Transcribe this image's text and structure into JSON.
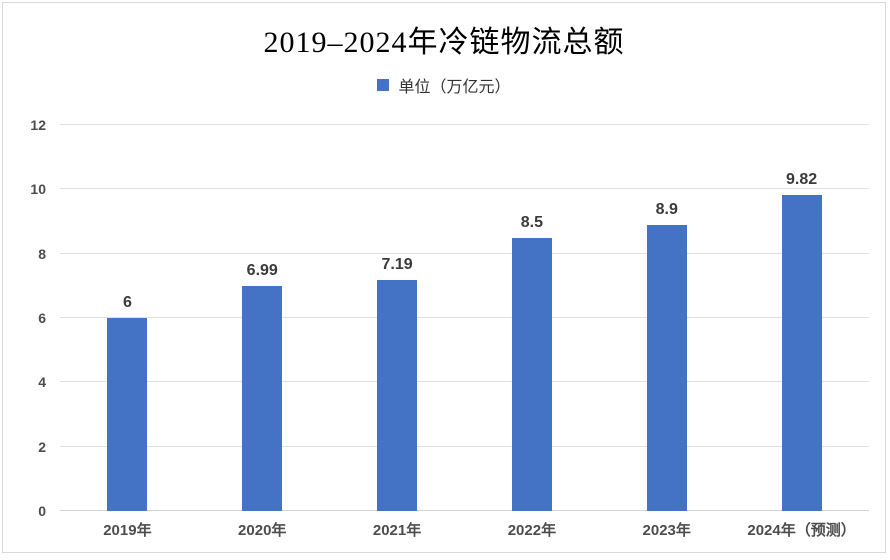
{
  "title": "2019–2024年冷链物流总额",
  "legend": {
    "label": "单位（万亿元）",
    "marker_color": "#4472c4"
  },
  "colors": {
    "bar": "#4472c4",
    "gridline": "#e1e1e1",
    "axis_text": "#4d4d4d",
    "value_label_text": "#3b3b3b",
    "frame_border": "#d9d9d9"
  },
  "chart_data": {
    "type": "bar",
    "title": "2019–2024年冷链物流总额",
    "categories": [
      "2019年",
      "2020年",
      "2021年",
      "2022年",
      "2023年",
      "2024年（预测）"
    ],
    "values": [
      6,
      6.99,
      7.19,
      8.5,
      8.9,
      9.82
    ],
    "data_labels": [
      "6",
      "6.99",
      "7.19",
      "8.5",
      "8.9",
      "9.82"
    ],
    "series_name": "单位（万亿元）",
    "xlabel": "",
    "ylabel": "",
    "ylim": [
      0,
      12
    ],
    "yticks": [
      0,
      2,
      4,
      6,
      8,
      10,
      12
    ],
    "ytick_step": 2,
    "grid": true,
    "legend_position": "top",
    "bar_color": "#4472c4"
  }
}
